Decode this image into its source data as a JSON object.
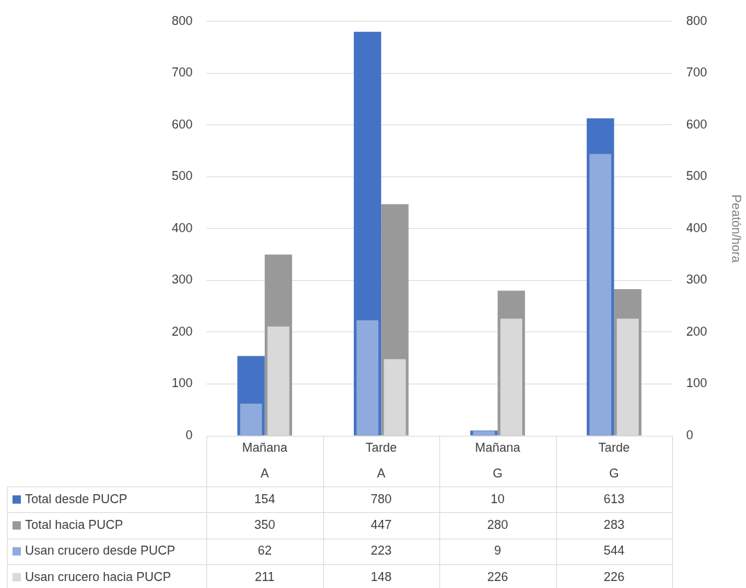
{
  "chart_data": {
    "type": "bar",
    "categories": [
      "Mañana\nA",
      "Tarde\nA",
      "Mañana\nG",
      "Tarde\nG"
    ],
    "series": [
      {
        "name": "Total desde PUCP",
        "color": "#4472c4",
        "values": [
          154,
          780,
          10,
          613
        ]
      },
      {
        "name": "Total hacia PUCP",
        "color": "#999999",
        "values": [
          350,
          447,
          280,
          283
        ]
      },
      {
        "name": "Usan crucero desde PUCP",
        "color": "#8faadc",
        "values": [
          62,
          223,
          9,
          544
        ]
      },
      {
        "name": "Usan crucero hacia PUCP",
        "color": "#d9d9d9",
        "values": [
          211,
          148,
          226,
          226
        ]
      }
    ],
    "ylim": [
      0,
      800
    ],
    "yticks": [
      0,
      100,
      200,
      300,
      400,
      500,
      600,
      700,
      800
    ],
    "y2lim": [
      0,
      800
    ],
    "y2ticks": [
      0,
      100,
      200,
      300,
      400,
      500,
      600,
      700,
      800
    ],
    "y2label": "Peatón/hora",
    "grid": "y",
    "legend": "bottom left",
    "data_labels": true
  }
}
